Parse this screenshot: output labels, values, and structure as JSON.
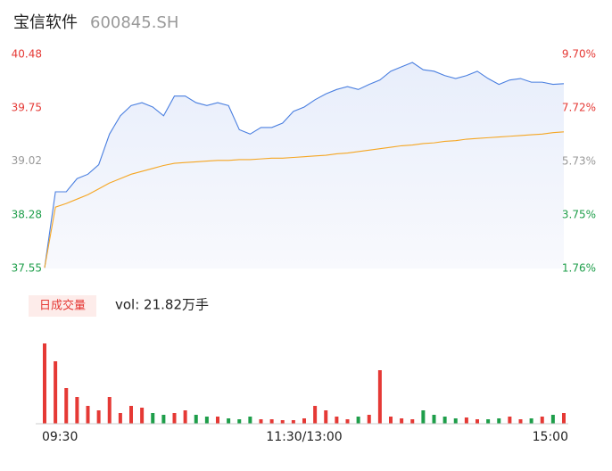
{
  "chart_data": {
    "type": "intraday",
    "title": "宝信软件",
    "subtitle": "600845.SH",
    "xlim": [
      0,
      240
    ],
    "xticks": [
      {
        "value": 0,
        "label": "09:30"
      },
      {
        "value": 120,
        "label": "11:30/13:00"
      },
      {
        "value": 240,
        "label": "15:00"
      }
    ],
    "x": [
      0,
      5,
      10,
      15,
      20,
      25,
      30,
      35,
      40,
      45,
      50,
      55,
      60,
      65,
      70,
      75,
      80,
      85,
      90,
      95,
      100,
      105,
      110,
      115,
      120,
      125,
      130,
      135,
      140,
      145,
      150,
      155,
      160,
      165,
      170,
      175,
      180,
      185,
      190,
      195,
      200,
      205,
      210,
      215,
      220,
      225,
      230,
      235,
      240
    ],
    "ylim": [
      37.55,
      40.48
    ],
    "yticks": [
      37.55,
      38.28,
      39.02,
      39.75,
      40.48
    ],
    "y2lim": [
      1.76,
      9.7
    ],
    "y2ticks": [
      {
        "value": 1.76,
        "label": "1.76%"
      },
      {
        "value": 3.75,
        "label": "3.75%"
      },
      {
        "value": 5.73,
        "label": "5.73%"
      },
      {
        "value": 7.72,
        "label": "7.72%"
      },
      {
        "value": 9.7,
        "label": "9.70%"
      }
    ],
    "series": [
      {
        "color": "#4a7fe0",
        "values": [
          37.56,
          38.6,
          38.6,
          38.78,
          38.84,
          38.97,
          39.39,
          39.64,
          39.78,
          39.82,
          39.76,
          39.64,
          39.91,
          39.91,
          39.82,
          39.78,
          39.82,
          39.78,
          39.45,
          39.39,
          39.48,
          39.48,
          39.54,
          39.7,
          39.76,
          39.86,
          39.94,
          40.0,
          40.04,
          40.0,
          40.07,
          40.13,
          40.25,
          40.31,
          40.37,
          40.27,
          40.25,
          40.19,
          40.15,
          40.19,
          40.25,
          40.15,
          40.07,
          40.13,
          40.15,
          40.1,
          40.1,
          40.07,
          40.08
        ]
      },
      {
        "color": "#f5a623",
        "values": [
          37.56,
          38.39,
          38.44,
          38.5,
          38.56,
          38.64,
          38.72,
          38.78,
          38.84,
          38.88,
          38.92,
          38.96,
          38.99,
          39.0,
          39.01,
          39.02,
          39.03,
          39.03,
          39.04,
          39.04,
          39.05,
          39.06,
          39.06,
          39.07,
          39.08,
          39.09,
          39.1,
          39.12,
          39.13,
          39.15,
          39.17,
          39.19,
          39.21,
          39.23,
          39.24,
          39.26,
          39.27,
          39.29,
          39.3,
          39.32,
          39.33,
          39.34,
          39.35,
          39.36,
          39.37,
          39.38,
          39.39,
          39.41,
          39.42
        ]
      }
    ],
    "volume": {
      "label": "日成交量",
      "summary": "vol: 21.82万手",
      "ylim": [
        0,
        9000
      ],
      "values": [
        9000,
        7000,
        4000,
        3000,
        2000,
        1500,
        3000,
        1200,
        2000,
        1800,
        1200,
        1000,
        1200,
        1500,
        1000,
        800,
        800,
        600,
        500,
        800,
        500,
        500,
        400,
        400,
        600,
        2000,
        1500,
        800,
        500,
        800,
        1000,
        6000,
        800,
        600,
        500,
        1500,
        1000,
        800,
        600,
        700,
        500,
        500,
        600,
        800,
        500,
        600,
        800,
        1000,
        1200
      ]
    }
  }
}
